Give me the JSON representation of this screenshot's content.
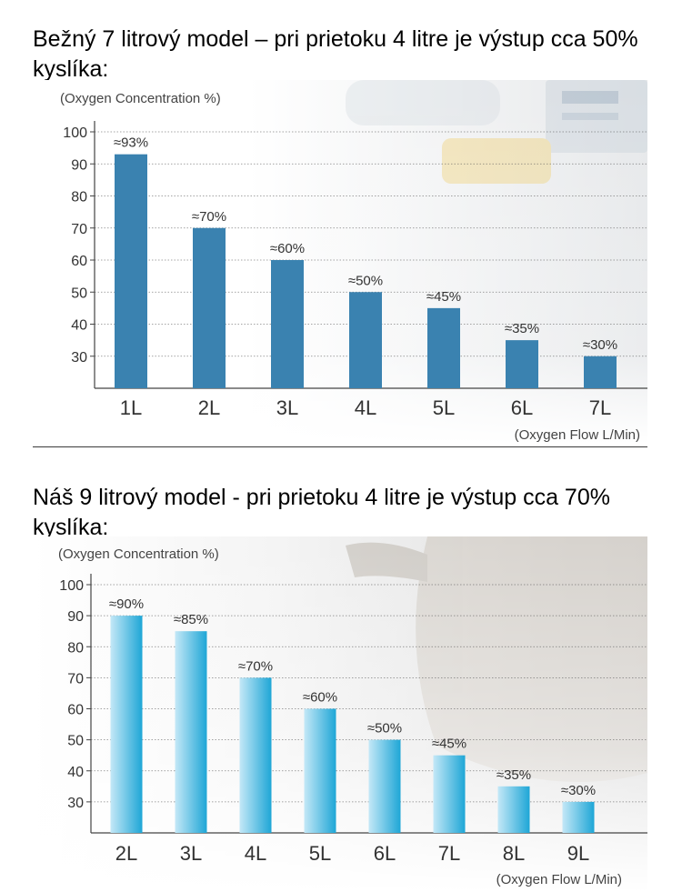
{
  "heading1": "Bežný 7 litrový model – pri prietoku 4 litre je výstup cca 50% kyslíka:",
  "heading2": "Náš 9 litrový model - pri prietoku 4 litre je výstup cca 70% kyslíka:",
  "colors": {
    "bar1": "#3a82b0",
    "bar2_light": "#bfe6f6",
    "bar2_dark": "#1fa8d8",
    "axis": "#444444",
    "label": "#444444"
  },
  "chart_data": [
    {
      "type": "bar",
      "title": "",
      "ylabel": "(Oxygen Concentration %)",
      "xlabel": "(Oxygen Flow L/Min)",
      "yticks": [
        30,
        40,
        50,
        60,
        70,
        80,
        90,
        100
      ],
      "ylim": [
        20,
        100
      ],
      "grid": "dotted lines at ticks",
      "categories": [
        "1L",
        "2L",
        "3L",
        "4L",
        "5L",
        "6L",
        "7L"
      ],
      "values": [
        93,
        70,
        60,
        50,
        45,
        35,
        30
      ],
      "value_labels": [
        "≈93%",
        "≈70%",
        "≈60%",
        "≈50%",
        "≈45%",
        "≈35%",
        "≈30%"
      ]
    },
    {
      "type": "bar",
      "title": "",
      "ylabel": "(Oxygen Concentration %)",
      "xlabel": "(Oxygen Flow L/Min)",
      "yticks": [
        30,
        40,
        50,
        60,
        70,
        80,
        90,
        100
      ],
      "ylim": [
        20,
        100
      ],
      "grid": "dotted lines at ticks",
      "categories": [
        "2L",
        "3L",
        "4L",
        "5L",
        "6L",
        "7L",
        "8L",
        "9L"
      ],
      "values": [
        90,
        85,
        70,
        60,
        50,
        45,
        35,
        30
      ],
      "value_labels": [
        "≈90%",
        "≈85%",
        "≈70%",
        "≈60%",
        "≈50%",
        "≈45%",
        "≈35%",
        "≈30%"
      ]
    }
  ]
}
